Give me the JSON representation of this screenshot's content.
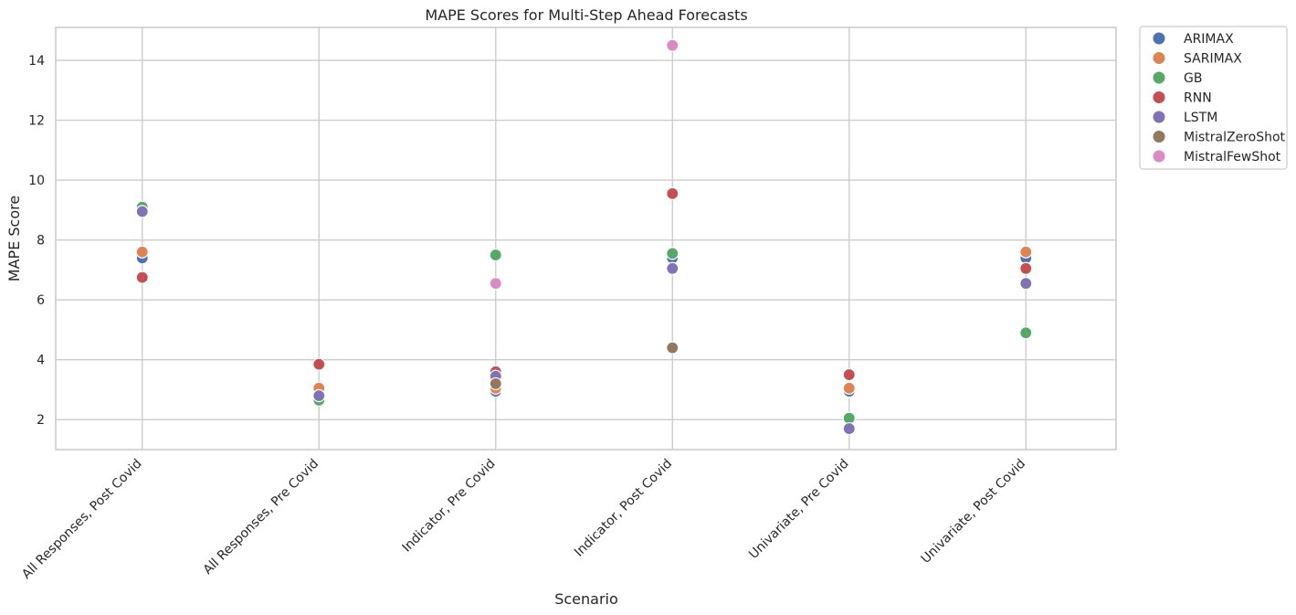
{
  "chart_data": {
    "type": "scatter",
    "title": "MAPE Scores for Multi-Step Ahead Forecasts",
    "xlabel": "Scenario",
    "ylabel": "MAPE Score",
    "categories": [
      "All Responses, Post Covid",
      "All Responses, Pre Covid",
      "Indicator, Pre Covid",
      "Indicator, Post Covid",
      "Univariate, Pre Covid",
      "Univariate, Post Covid"
    ],
    "ylim": [
      1.0,
      15.1
    ],
    "yticks": [
      2,
      4,
      6,
      8,
      10,
      12,
      14
    ],
    "grid": true,
    "legend_position": "outside-top-right",
    "series": [
      {
        "name": "ARIMAX",
        "color": "#4c72b0",
        "values": [
          7.4,
          2.8,
          2.95,
          7.4,
          2.95,
          7.4
        ]
      },
      {
        "name": "SARIMAX",
        "color": "#dd8452",
        "values": [
          7.6,
          3.05,
          3.05,
          null,
          3.05,
          7.6
        ]
      },
      {
        "name": "GB",
        "color": "#55a868",
        "values": [
          9.1,
          2.65,
          7.5,
          7.55,
          2.05,
          4.9
        ]
      },
      {
        "name": "RNN",
        "color": "#c44e52",
        "values": [
          6.75,
          3.85,
          3.6,
          9.55,
          3.5,
          7.05
        ]
      },
      {
        "name": "LSTM",
        "color": "#8172b3",
        "values": [
          8.95,
          2.8,
          3.45,
          7.05,
          1.7,
          6.55
        ]
      },
      {
        "name": "MistralZeroShot",
        "color": "#937860",
        "values": [
          null,
          null,
          3.2,
          4.4,
          null,
          null
        ]
      },
      {
        "name": "MistralFewShot",
        "color": "#da8bc3",
        "values": [
          null,
          null,
          6.55,
          14.5,
          null,
          null
        ]
      }
    ]
  }
}
